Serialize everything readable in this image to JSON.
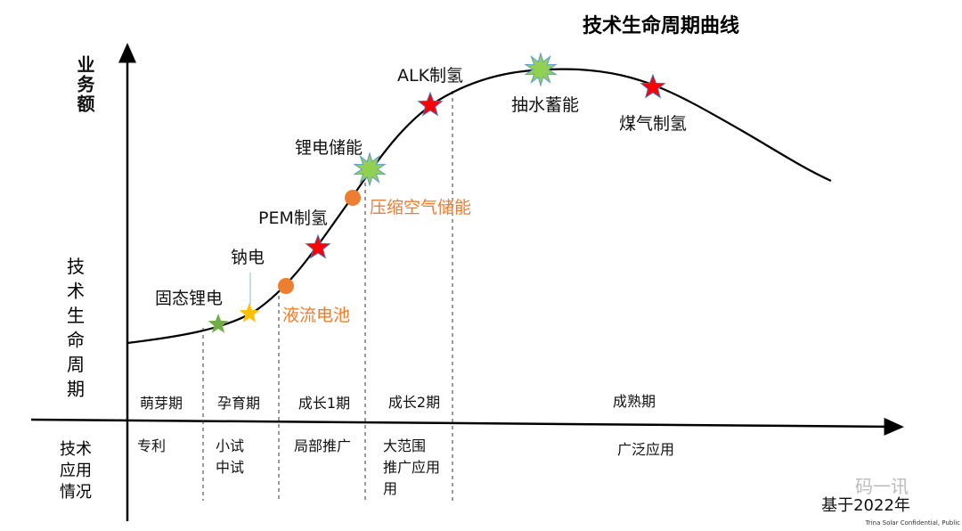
{
  "title": "技术生命周期曲线",
  "y_axis_label": "业务额",
  "stage_row_label": "技术生命周期",
  "application_row_label": "技术应用情况",
  "stages": [
    "萌芽期",
    "孕育期",
    "成长1期",
    "成长2期",
    "成熟期"
  ],
  "applications": [
    [
      "专利"
    ],
    [
      "小试",
      "中试"
    ],
    [
      "局部推广"
    ],
    [
      "大范围",
      "推广应用",
      "用"
    ],
    [
      "广泛应用"
    ]
  ],
  "technologies": [
    {
      "name": "固态锂电",
      "marker": "green-star",
      "stage": "孕育期"
    },
    {
      "name": "钠电",
      "marker": "yellow-star",
      "stage": "孕育期"
    },
    {
      "name": "液流电池",
      "marker": "orange-dot",
      "stage": "成长1期"
    },
    {
      "name": "PEM制氢",
      "marker": "red-star",
      "stage": "成长1期"
    },
    {
      "name": "压缩空气储能",
      "marker": "orange-dot",
      "stage": "成长2期"
    },
    {
      "name": "锂电储能",
      "marker": "green-burst",
      "stage": "成长2期"
    },
    {
      "name": "ALK制氢",
      "marker": "red-star",
      "stage": "成长2期"
    },
    {
      "name": "抽水蓄能",
      "marker": "green-burst",
      "stage": "成熟期"
    },
    {
      "name": "煤气制氢",
      "marker": "red-star",
      "stage": "成熟期"
    }
  ],
  "footnote": "基于2022年",
  "watermark": "码一讯",
  "confidential": "Trina Solar Confidential, Public",
  "colors": {
    "red_star": "#ff0000",
    "green": "#70ad47",
    "yellow": "#ffc000",
    "orange": "#ed7d31",
    "burst": "#92d050"
  }
}
